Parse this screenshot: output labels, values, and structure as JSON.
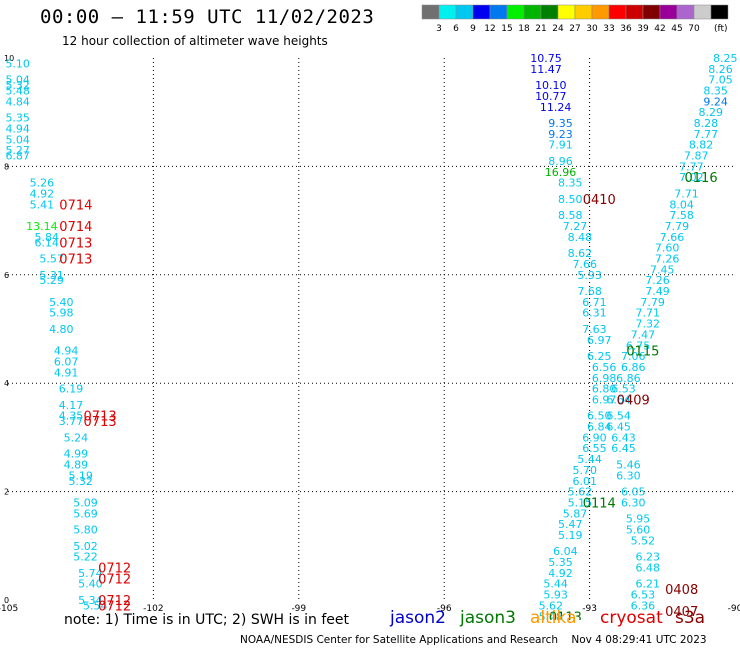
{
  "title": "00:00 – 11:59 UTC 11/02/2023",
  "subtitle": "12 hour collection of altimeter wave heights",
  "credit": "NOAA/NESDIS Center for Satellite Applications and Research",
  "timestamp": "Nov  4 08:29:41 UTC 2023",
  "note": "note:  1) Time is in UTC; 2) SWH is in feet",
  "satellites": [
    {
      "name": "jason2",
      "color": "#0000cc"
    },
    {
      "name": "jason3",
      "color": "#007700"
    },
    {
      "name": "altika",
      "color": "#ff9900"
    },
    {
      "name": "cryosat",
      "color": "#dd0000"
    },
    {
      "name": "s3a",
      "color": "#880000"
    }
  ],
  "colorbar": {
    "unit": "(ft)",
    "colors": [
      "#707070",
      "#00f0f0",
      "#00c8f0",
      "#0000f0",
      "#0078f0",
      "#00f000",
      "#00b400",
      "#008000",
      "#ffff00",
      "#ffcc00",
      "#ff9900",
      "#ff0000",
      "#cc0000",
      "#800000",
      "#990099",
      "#aa66cc",
      "#cccccc",
      "#000000"
    ],
    "labels": [
      "3",
      "6",
      "9",
      "12",
      "15",
      "18",
      "21",
      "24",
      "27",
      "30",
      "33",
      "36",
      "39",
      "42",
      "45",
      "70"
    ]
  },
  "chart_data": {
    "type": "scatter",
    "xlim": [
      -105,
      -90
    ],
    "ylim": [
      0,
      10
    ],
    "x_ticks": [
      -105,
      -102,
      -99,
      -96,
      -93,
      -90
    ],
    "x_tick_labels": [
      "-105",
      "-102",
      "-99",
      "-96",
      "-93",
      "-90"
    ],
    "y_ticks": [
      0,
      2,
      4,
      6,
      8,
      10
    ],
    "y_tick_labels": [
      "0",
      "2",
      "4",
      "6",
      "8",
      "10"
    ],
    "grid": true,
    "points": [
      {
        "x": -104.8,
        "y": 9.9,
        "v": "5.10",
        "c": "#00c8f0"
      },
      {
        "x": -104.8,
        "y": 9.6,
        "v": "5.04",
        "c": "#00c8f0"
      },
      {
        "x": -104.8,
        "y": 9.5,
        "v": "5.32",
        "c": "#00c8f0"
      },
      {
        "x": -104.8,
        "y": 9.4,
        "v": "5.48",
        "c": "#00c8f0"
      },
      {
        "x": -104.8,
        "y": 9.2,
        "v": "4.84",
        "c": "#00c8f0"
      },
      {
        "x": -104.8,
        "y": 8.9,
        "v": "5.35",
        "c": "#00c8f0"
      },
      {
        "x": -104.8,
        "y": 8.7,
        "v": "4.94",
        "c": "#00c8f0"
      },
      {
        "x": -104.8,
        "y": 8.5,
        "v": "5.04",
        "c": "#00c8f0"
      },
      {
        "x": -104.8,
        "y": 8.3,
        "v": "5.27",
        "c": "#00c8f0"
      },
      {
        "x": -104.8,
        "y": 8.2,
        "v": "6.87",
        "c": "#00c8f0"
      },
      {
        "x": -104.3,
        "y": 7.7,
        "v": "5.26",
        "c": "#00c8f0"
      },
      {
        "x": -104.3,
        "y": 7.5,
        "v": "4.92",
        "c": "#00c8f0"
      },
      {
        "x": -104.3,
        "y": 7.3,
        "v": "5.41",
        "c": "#00c8f0"
      },
      {
        "x": -104.3,
        "y": 6.9,
        "v": "13.14",
        "c": "#00f000"
      },
      {
        "x": -104.2,
        "y": 6.7,
        "v": "5.84",
        "c": "#00c8f0"
      },
      {
        "x": -104.2,
        "y": 6.6,
        "v": "6.14",
        "c": "#00c8f0"
      },
      {
        "x": -104.1,
        "y": 6.3,
        "v": "5.57",
        "c": "#00c8f0"
      },
      {
        "x": -104.1,
        "y": 6.0,
        "v": "5.31",
        "c": "#00c8f0"
      },
      {
        "x": -104.1,
        "y": 5.9,
        "v": "5.29",
        "c": "#00c8f0"
      },
      {
        "x": -103.9,
        "y": 5.5,
        "v": "5.40",
        "c": "#00c8f0"
      },
      {
        "x": -103.9,
        "y": 5.3,
        "v": "5.98",
        "c": "#00c8f0"
      },
      {
        "x": -103.9,
        "y": 5.0,
        "v": "4.80",
        "c": "#00c8f0"
      },
      {
        "x": -103.8,
        "y": 4.6,
        "v": "4.94",
        "c": "#00c8f0"
      },
      {
        "x": -103.8,
        "y": 4.4,
        "v": "6.07",
        "c": "#00c8f0"
      },
      {
        "x": -103.8,
        "y": 4.2,
        "v": "4.91",
        "c": "#00c8f0"
      },
      {
        "x": -103.7,
        "y": 3.9,
        "v": "6.19",
        "c": "#00c8f0"
      },
      {
        "x": -103.7,
        "y": 3.6,
        "v": "4.17",
        "c": "#00c8f0"
      },
      {
        "x": -103.7,
        "y": 3.4,
        "v": "4.35",
        "c": "#00c8f0"
      },
      {
        "x": -103.7,
        "y": 3.3,
        "v": "3.77",
        "c": "#00c8f0"
      },
      {
        "x": -103.6,
        "y": 3.0,
        "v": "5.24",
        "c": "#00c8f0"
      },
      {
        "x": -103.6,
        "y": 2.7,
        "v": "4.99",
        "c": "#00c8f0"
      },
      {
        "x": -103.6,
        "y": 2.5,
        "v": "4.89",
        "c": "#00c8f0"
      },
      {
        "x": -103.5,
        "y": 2.3,
        "v": "5.19",
        "c": "#00c8f0"
      },
      {
        "x": -103.5,
        "y": 2.2,
        "v": "5.32",
        "c": "#00c8f0"
      },
      {
        "x": -103.4,
        "y": 1.8,
        "v": "5.09",
        "c": "#00c8f0"
      },
      {
        "x": -103.4,
        "y": 1.6,
        "v": "5.69",
        "c": "#00c8f0"
      },
      {
        "x": -103.4,
        "y": 1.3,
        "v": "5.80",
        "c": "#00c8f0"
      },
      {
        "x": -103.4,
        "y": 1.0,
        "v": "5.02",
        "c": "#00c8f0"
      },
      {
        "x": -103.4,
        "y": 0.8,
        "v": "5.22",
        "c": "#00c8f0"
      },
      {
        "x": -103.3,
        "y": 0.5,
        "v": "5.74",
        "c": "#00c8f0"
      },
      {
        "x": -103.3,
        "y": 0.3,
        "v": "5.40",
        "c": "#00c8f0"
      },
      {
        "x": -103.3,
        "y": 0.0,
        "v": "5.34",
        "c": "#00c8f0"
      },
      {
        "x": -103.2,
        "y": -0.1,
        "v": "5.54",
        "c": "#00c8f0"
      },
      {
        "x": -93.9,
        "y": 10.0,
        "v": "10.75",
        "c": "#0000f0"
      },
      {
        "x": -93.9,
        "y": 9.8,
        "v": "11.47",
        "c": "#0000f0"
      },
      {
        "x": -93.8,
        "y": 9.5,
        "v": "10.10",
        "c": "#0000f0"
      },
      {
        "x": -93.8,
        "y": 9.3,
        "v": "10.77",
        "c": "#0000f0"
      },
      {
        "x": -93.7,
        "y": 9.1,
        "v": "11.24",
        "c": "#0000f0"
      },
      {
        "x": -93.6,
        "y": 8.8,
        "v": "9.35",
        "c": "#0078f0"
      },
      {
        "x": -93.6,
        "y": 8.6,
        "v": "9.23",
        "c": "#0078f0"
      },
      {
        "x": -93.6,
        "y": 8.4,
        "v": "7.91",
        "c": "#00c8f0"
      },
      {
        "x": -93.6,
        "y": 8.1,
        "v": "8.96",
        "c": "#00c8f0"
      },
      {
        "x": -93.6,
        "y": 7.9,
        "v": "16.96",
        "c": "#00b400"
      },
      {
        "x": -93.4,
        "y": 7.7,
        "v": "8.35",
        "c": "#00c8f0"
      },
      {
        "x": -93.4,
        "y": 7.4,
        "v": "8.50",
        "c": "#00c8f0"
      },
      {
        "x": -93.4,
        "y": 7.1,
        "v": "8.58",
        "c": "#00c8f0"
      },
      {
        "x": -93.3,
        "y": 6.9,
        "v": "7.27",
        "c": "#00c8f0"
      },
      {
        "x": -93.2,
        "y": 6.7,
        "v": "8.48",
        "c": "#00c8f0"
      },
      {
        "x": -93.2,
        "y": 6.4,
        "v": "8.62",
        "c": "#00c8f0"
      },
      {
        "x": -93.1,
        "y": 6.2,
        "v": "7.66",
        "c": "#00c8f0"
      },
      {
        "x": -93.0,
        "y": 6.0,
        "v": "5.93",
        "c": "#00c8f0"
      },
      {
        "x": -93.0,
        "y": 5.7,
        "v": "7.68",
        "c": "#00c8f0"
      },
      {
        "x": -92.9,
        "y": 5.5,
        "v": "6.71",
        "c": "#00c8f0"
      },
      {
        "x": -92.9,
        "y": 5.3,
        "v": "6.31",
        "c": "#00c8f0"
      },
      {
        "x": -92.9,
        "y": 5.0,
        "v": "7.63",
        "c": "#00c8f0"
      },
      {
        "x": -92.8,
        "y": 4.8,
        "v": "6.97",
        "c": "#00c8f0"
      },
      {
        "x": -92.8,
        "y": 4.5,
        "v": "6.25",
        "c": "#00c8f0"
      },
      {
        "x": -92.7,
        "y": 4.3,
        "v": "6.56",
        "c": "#00c8f0"
      },
      {
        "x": -92.7,
        "y": 4.1,
        "v": "6.98",
        "c": "#00c8f0"
      },
      {
        "x": -92.7,
        "y": 3.9,
        "v": "6.80",
        "c": "#00c8f0"
      },
      {
        "x": -92.7,
        "y": 3.7,
        "v": "6.97",
        "c": "#00c8f0"
      },
      {
        "x": -92.8,
        "y": 3.4,
        "v": "6.50",
        "c": "#00c8f0"
      },
      {
        "x": -92.8,
        "y": 3.2,
        "v": "6.84",
        "c": "#00c8f0"
      },
      {
        "x": -92.9,
        "y": 3.0,
        "v": "6.90",
        "c": "#00c8f0"
      },
      {
        "x": -92.9,
        "y": 2.8,
        "v": "6.55",
        "c": "#00c8f0"
      },
      {
        "x": -93.0,
        "y": 2.6,
        "v": "5.44",
        "c": "#00c8f0"
      },
      {
        "x": -93.1,
        "y": 2.4,
        "v": "5.70",
        "c": "#00c8f0"
      },
      {
        "x": -93.1,
        "y": 2.2,
        "v": "6.01",
        "c": "#00c8f0"
      },
      {
        "x": -93.2,
        "y": 2.0,
        "v": "5.62",
        "c": "#00c8f0"
      },
      {
        "x": -93.2,
        "y": 1.8,
        "v": "5.15",
        "c": "#00c8f0"
      },
      {
        "x": -93.3,
        "y": 1.6,
        "v": "5.87",
        "c": "#00c8f0"
      },
      {
        "x": -93.4,
        "y": 1.4,
        "v": "5.47",
        "c": "#00c8f0"
      },
      {
        "x": -93.4,
        "y": 1.2,
        "v": "5.19",
        "c": "#00c8f0"
      },
      {
        "x": -93.5,
        "y": 0.9,
        "v": "6.04",
        "c": "#00c8f0"
      },
      {
        "x": -93.6,
        "y": 0.7,
        "v": "5.35",
        "c": "#00c8f0"
      },
      {
        "x": -93.6,
        "y": 0.5,
        "v": "4.92",
        "c": "#00c8f0"
      },
      {
        "x": -93.7,
        "y": 0.3,
        "v": "5.44",
        "c": "#00c8f0"
      },
      {
        "x": -93.7,
        "y": 0.1,
        "v": "5.93",
        "c": "#00c8f0"
      },
      {
        "x": -93.8,
        "y": -0.1,
        "v": "5.62",
        "c": "#00c8f0"
      },
      {
        "x": -93.8,
        "y": -0.3,
        "v": "5.48",
        "c": "#00c8f0"
      },
      {
        "x": -90.2,
        "y": 10.0,
        "v": "8.25",
        "c": "#00c8f0"
      },
      {
        "x": -90.3,
        "y": 9.8,
        "v": "8.26",
        "c": "#00c8f0"
      },
      {
        "x": -90.3,
        "y": 9.6,
        "v": "7.05",
        "c": "#00c8f0"
      },
      {
        "x": -90.4,
        "y": 9.4,
        "v": "8.35",
        "c": "#00c8f0"
      },
      {
        "x": -90.4,
        "y": 9.2,
        "v": "9.24",
        "c": "#0078f0"
      },
      {
        "x": -90.5,
        "y": 9.0,
        "v": "8.29",
        "c": "#00c8f0"
      },
      {
        "x": -90.6,
        "y": 8.8,
        "v": "8.28",
        "c": "#00c8f0"
      },
      {
        "x": -90.6,
        "y": 8.6,
        "v": "7.77",
        "c": "#00c8f0"
      },
      {
        "x": -90.7,
        "y": 8.4,
        "v": "8.82",
        "c": "#00c8f0"
      },
      {
        "x": -90.8,
        "y": 8.2,
        "v": "7.87",
        "c": "#00c8f0"
      },
      {
        "x": -90.9,
        "y": 8.0,
        "v": "7.77",
        "c": "#00c8f0"
      },
      {
        "x": -90.9,
        "y": 7.8,
        "v": "7.02",
        "c": "#00c8f0"
      },
      {
        "x": -91.0,
        "y": 7.5,
        "v": "7.71",
        "c": "#00c8f0"
      },
      {
        "x": -91.1,
        "y": 7.3,
        "v": "8.04",
        "c": "#00c8f0"
      },
      {
        "x": -91.1,
        "y": 7.1,
        "v": "7.58",
        "c": "#00c8f0"
      },
      {
        "x": -91.2,
        "y": 6.9,
        "v": "7.79",
        "c": "#00c8f0"
      },
      {
        "x": -91.3,
        "y": 6.7,
        "v": "7.66",
        "c": "#00c8f0"
      },
      {
        "x": -91.4,
        "y": 6.5,
        "v": "7.60",
        "c": "#00c8f0"
      },
      {
        "x": -91.4,
        "y": 6.3,
        "v": "7.26",
        "c": "#00c8f0"
      },
      {
        "x": -91.5,
        "y": 6.1,
        "v": "7.45",
        "c": "#00c8f0"
      },
      {
        "x": -91.6,
        "y": 5.9,
        "v": "7.26",
        "c": "#00c8f0"
      },
      {
        "x": -91.6,
        "y": 5.7,
        "v": "7.49",
        "c": "#00c8f0"
      },
      {
        "x": -91.7,
        "y": 5.5,
        "v": "7.79",
        "c": "#00c8f0"
      },
      {
        "x": -91.8,
        "y": 5.3,
        "v": "7.71",
        "c": "#00c8f0"
      },
      {
        "x": -91.8,
        "y": 5.1,
        "v": "7.32",
        "c": "#00c8f0"
      },
      {
        "x": -91.9,
        "y": 4.9,
        "v": "7.47",
        "c": "#00c8f0"
      },
      {
        "x": -92.0,
        "y": 4.7,
        "v": "6.75",
        "c": "#00c8f0"
      },
      {
        "x": -92.1,
        "y": 4.5,
        "v": "7.06",
        "c": "#00c8f0"
      },
      {
        "x": -92.1,
        "y": 4.3,
        "v": "6.86",
        "c": "#00c8f0"
      },
      {
        "x": -92.2,
        "y": 4.1,
        "v": "6.86",
        "c": "#00c8f0"
      },
      {
        "x": -92.3,
        "y": 3.9,
        "v": "6.53",
        "c": "#00c8f0"
      },
      {
        "x": -92.4,
        "y": 3.7,
        "v": "6.64",
        "c": "#00c8f0"
      },
      {
        "x": -92.4,
        "y": 3.4,
        "v": "6.54",
        "c": "#00c8f0"
      },
      {
        "x": -92.4,
        "y": 3.2,
        "v": "6.45",
        "c": "#00c8f0"
      },
      {
        "x": -92.3,
        "y": 3.0,
        "v": "6.43",
        "c": "#00c8f0"
      },
      {
        "x": -92.3,
        "y": 2.8,
        "v": "6.45",
        "c": "#00c8f0"
      },
      {
        "x": -92.2,
        "y": 2.5,
        "v": "5.46",
        "c": "#00c8f0"
      },
      {
        "x": -92.2,
        "y": 2.3,
        "v": "6.30",
        "c": "#00c8f0"
      },
      {
        "x": -92.1,
        "y": 2.0,
        "v": "6.05",
        "c": "#00c8f0"
      },
      {
        "x": -92.1,
        "y": 1.8,
        "v": "6.30",
        "c": "#00c8f0"
      },
      {
        "x": -92.0,
        "y": 1.5,
        "v": "5.95",
        "c": "#00c8f0"
      },
      {
        "x": -92.0,
        "y": 1.3,
        "v": "5.60",
        "c": "#00c8f0"
      },
      {
        "x": -91.9,
        "y": 1.1,
        "v": "5.52",
        "c": "#00c8f0"
      },
      {
        "x": -91.8,
        "y": 0.8,
        "v": "6.23",
        "c": "#00c8f0"
      },
      {
        "x": -91.8,
        "y": 0.6,
        "v": "6.48",
        "c": "#00c8f0"
      },
      {
        "x": -91.8,
        "y": 0.3,
        "v": "6.21",
        "c": "#00c8f0"
      },
      {
        "x": -91.9,
        "y": 0.1,
        "v": "6.53",
        "c": "#00c8f0"
      },
      {
        "x": -91.9,
        "y": -0.1,
        "v": "6.36",
        "c": "#00c8f0"
      }
    ],
    "time_labels": [
      {
        "x": -103.6,
        "y": 7.3,
        "v": "0714",
        "c": "#dd0000"
      },
      {
        "x": -103.6,
        "y": 6.9,
        "v": "0714",
        "c": "#dd0000"
      },
      {
        "x": -103.6,
        "y": 6.6,
        "v": "0713",
        "c": "#dd0000"
      },
      {
        "x": -103.6,
        "y": 6.3,
        "v": "0713",
        "c": "#dd0000"
      },
      {
        "x": -103.1,
        "y": 3.4,
        "v": "0713",
        "c": "#dd0000"
      },
      {
        "x": -103.1,
        "y": 3.3,
        "v": "0713",
        "c": "#dd0000"
      },
      {
        "x": -102.8,
        "y": 0.6,
        "v": "0712",
        "c": "#dd0000"
      },
      {
        "x": -102.8,
        "y": 0.4,
        "v": "0712",
        "c": "#dd0000"
      },
      {
        "x": -102.8,
        "y": 0.0,
        "v": "0712",
        "c": "#dd0000"
      },
      {
        "x": -102.8,
        "y": -0.1,
        "v": "0712",
        "c": "#dd0000"
      },
      {
        "x": -92.8,
        "y": 7.4,
        "v": "0410",
        "c": "#880000"
      },
      {
        "x": -90.7,
        "y": 7.8,
        "v": "0116",
        "c": "#007700"
      },
      {
        "x": -91.9,
        "y": 4.6,
        "v": "0115",
        "c": "#007700"
      },
      {
        "x": -92.1,
        "y": 3.7,
        "v": "0409",
        "c": "#880000"
      },
      {
        "x": -92.8,
        "y": 1.8,
        "v": "0114",
        "c": "#007700"
      },
      {
        "x": -93.5,
        "y": -0.3,
        "v": "0113",
        "c": "#007700"
      },
      {
        "x": -91.1,
        "y": 0.2,
        "v": "0408",
        "c": "#880000"
      },
      {
        "x": -91.1,
        "y": -0.2,
        "v": "0407",
        "c": "#880000"
      }
    ]
  }
}
